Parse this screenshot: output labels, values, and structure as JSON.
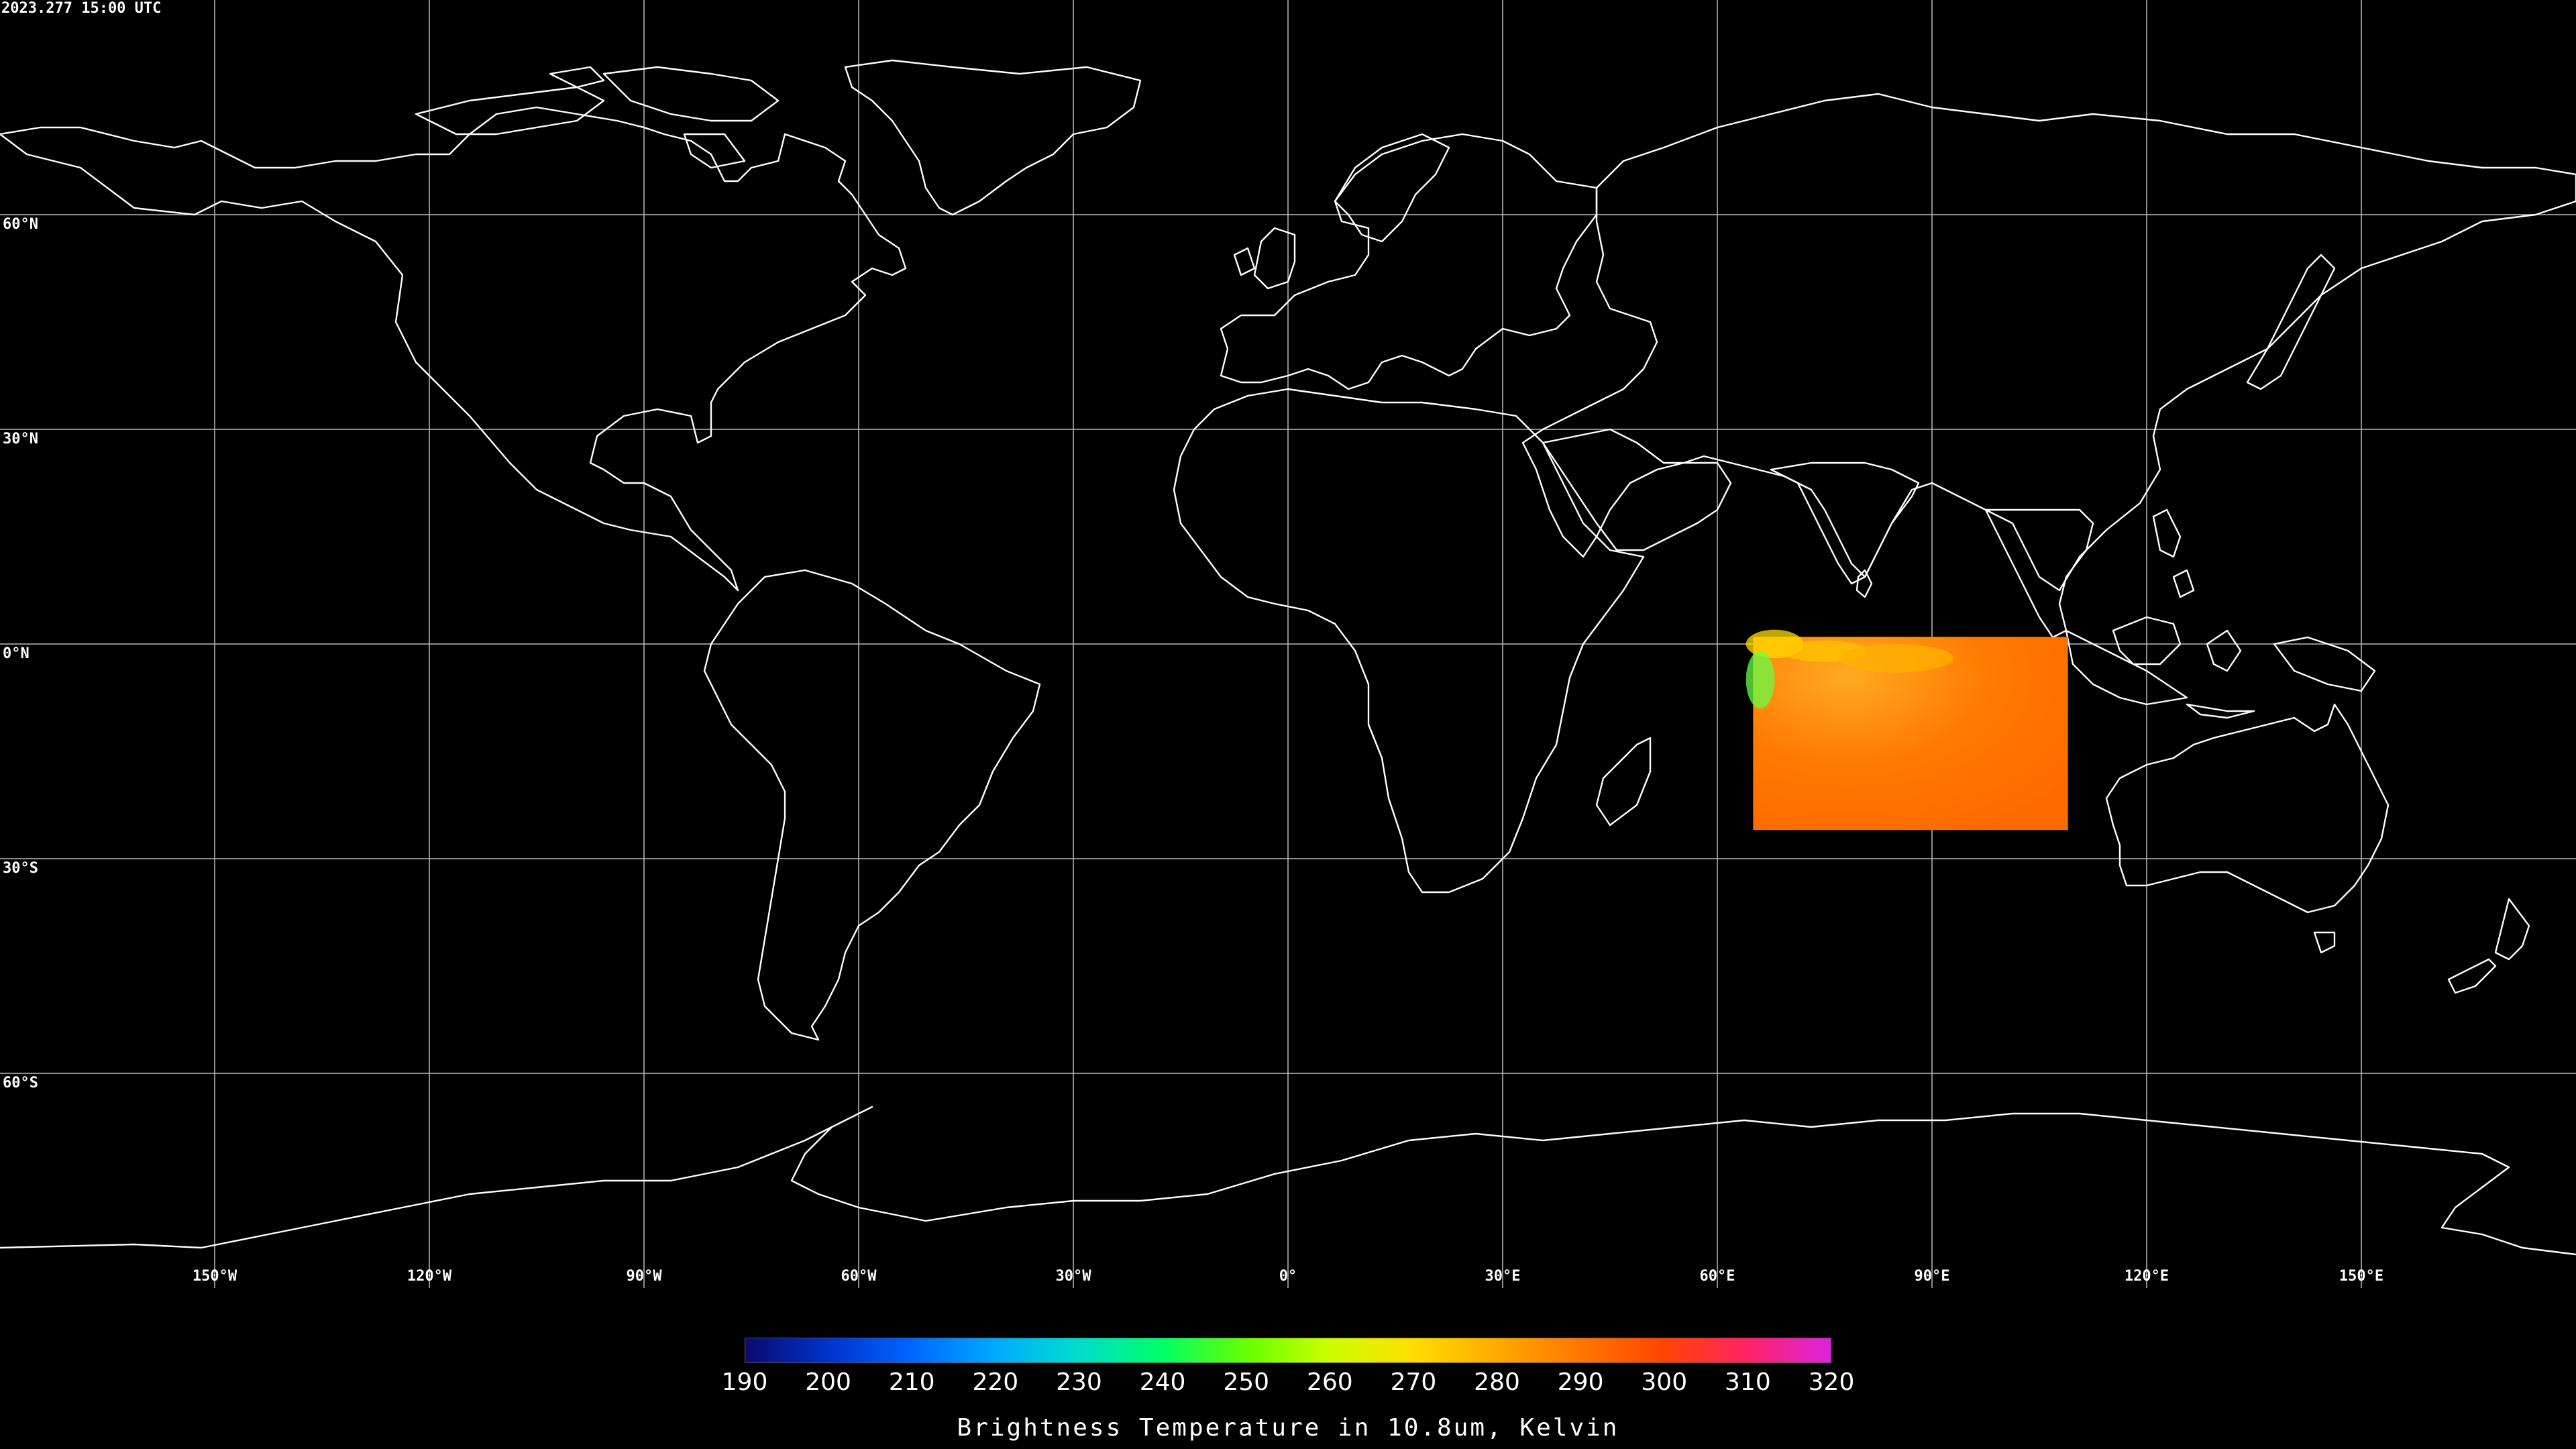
{
  "timestamp": "2023.277 15:00 UTC",
  "lat_labels": [
    "60°N",
    "30°N",
    "0°N",
    "30°S",
    "60°S"
  ],
  "lat_values": [
    60,
    30,
    0,
    -30,
    -60
  ],
  "lon_labels": [
    "150°W",
    "120°W",
    "90°W",
    "60°W",
    "30°W",
    "0°",
    "30°E",
    "60°E",
    "90°E",
    "120°E",
    "150°E"
  ],
  "lon_values": [
    -150,
    -120,
    -90,
    -60,
    -30,
    0,
    30,
    60,
    90,
    120,
    150
  ],
  "colorbar": {
    "title": "Brightness Temperature in 10.8um, Kelvin",
    "ticks": [
      "190",
      "200",
      "210",
      "220",
      "230",
      "240",
      "250",
      "260",
      "270",
      "280",
      "290",
      "300",
      "310",
      "320"
    ],
    "min": 190,
    "max": 320,
    "colors": [
      "#0a0a6e",
      "#0033cc",
      "#0066ff",
      "#00aaff",
      "#00ddcc",
      "#00ff66",
      "#66ff00",
      "#ccff00",
      "#ffdd00",
      "#ffaa00",
      "#ff7700",
      "#ff4400",
      "#ff2266",
      "#dd22dd"
    ]
  },
  "data_patch": {
    "lon_min": 65,
    "lon_max": 109,
    "lat_min": -26,
    "lat_max": 1,
    "dominant_color": "#ff7a00"
  },
  "colors": {
    "background": "#000000",
    "grid": "#bbbbbb",
    "coast": "#ffffff"
  }
}
